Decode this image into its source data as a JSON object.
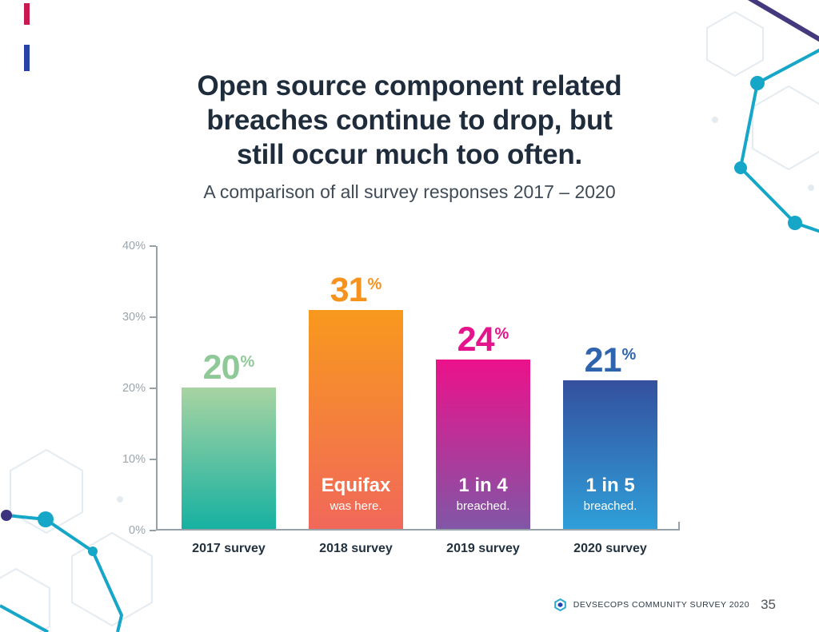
{
  "slide": {
    "title_lines": [
      "Open source component related",
      "breaches continue to drop, but",
      "still occur much too often."
    ],
    "subtitle": "A comparison of all survey responses 2017 – 2020"
  },
  "chart_data": {
    "type": "bar",
    "title": "Open source component related breaches continue to drop, but still occur much too often.",
    "subtitle": "A comparison of all survey responses 2017 – 2020",
    "categories": [
      "2017 survey",
      "2018 survey",
      "2019 survey",
      "2020 survey"
    ],
    "values": [
      20,
      31,
      24,
      21
    ],
    "ylim": [
      0,
      40
    ],
    "ylabel_ticks": [
      "40%",
      "30%",
      "20%",
      "10%",
      "0%"
    ],
    "grid": false,
    "legend": false,
    "bars": [
      {
        "category": "2017 survey",
        "value": 20,
        "value_label": "20",
        "percent_sign": "%",
        "note_line1": "",
        "note_line2": "",
        "color_top": "#a8d4a2",
        "color_bottom": "#16b1a1",
        "label_color": "#8fc998"
      },
      {
        "category": "2018 survey",
        "value": 31,
        "value_label": "31",
        "percent_sign": "%",
        "note_line1": "Equifax",
        "note_line2": "was here.",
        "color_top": "#f8991d",
        "color_bottom": "#f1685a",
        "label_color": "#f6921e"
      },
      {
        "category": "2019 survey",
        "value": 24,
        "value_label": "24",
        "percent_sign": "%",
        "note_line1": "1 in 4",
        "note_line2": "breached.",
        "color_top": "#ec118b",
        "color_bottom": "#8156a6",
        "label_color": "#e5138c"
      },
      {
        "category": "2020 survey",
        "value": 21,
        "value_label": "21",
        "percent_sign": "%",
        "note_line1": "1 in 5",
        "note_line2": "breached.",
        "color_top": "#34509e",
        "color_bottom": "#2f9fd9",
        "label_color": "#2d64ad"
      }
    ]
  },
  "footer": {
    "brand": "DEVSECOPS COMMUNITY SURVEY 2020",
    "page": "35"
  },
  "decor_colors": {
    "teal": "#16a6c8",
    "indigo": "#3b3380",
    "purple_line": "#44397e",
    "crimson_bar": "#c81a4e",
    "royal_blue_bar": "#2742a8",
    "hex_outline": "#e4ebf1"
  }
}
